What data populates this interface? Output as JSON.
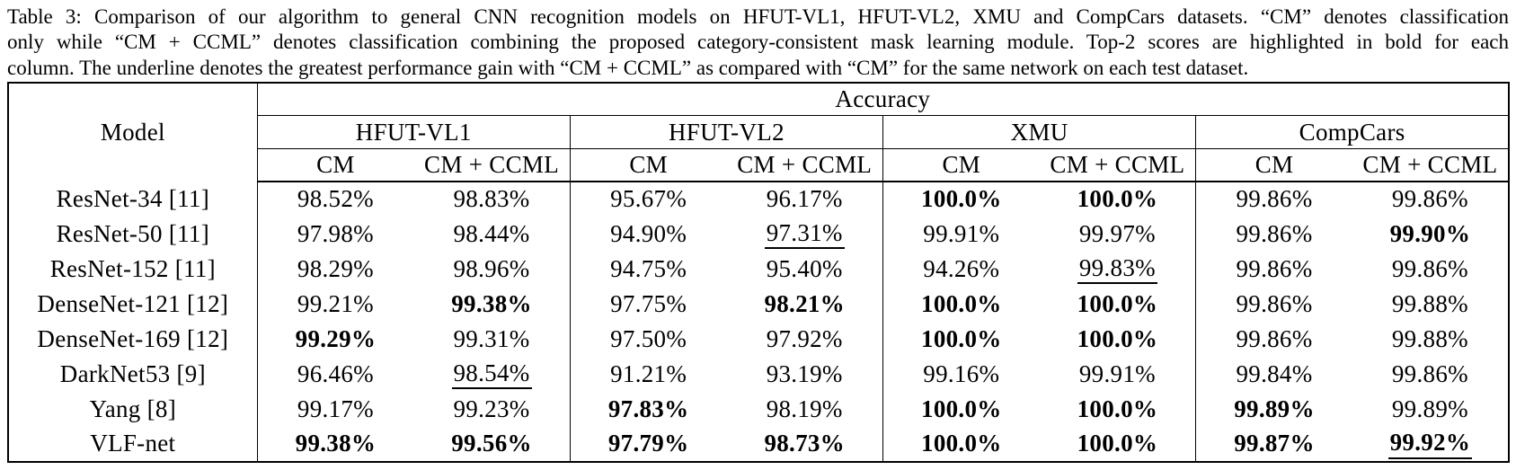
{
  "colors": {
    "background": "#ffffff",
    "text": "#000000",
    "border": "#000000"
  },
  "caption": {
    "lines": [
      "Table 3: Comparison of our algorithm to general CNN recognition models on HFUT-VL1, HFUT-VL2, XMU and CompCars datasets. “CM” denotes classification",
      "only while “CM + CCML” denotes classification combining the proposed category-consistent mask learning module. Top-2 scores are highlighted in bold for each",
      "column. The underline denotes the greatest performance gain with “CM + CCML” as compared with “CM” for the same network on each test dataset."
    ]
  },
  "table": {
    "header": {
      "model_label": "Model",
      "accuracy_label": "Accuracy",
      "datasets": [
        "HFUT-VL1",
        "HFUT-VL2",
        "XMU",
        "CompCars"
      ],
      "sub_columns": [
        "CM",
        "CM + CCML"
      ]
    },
    "rows": [
      {
        "model": "ResNet-34 [11]",
        "values": [
          {
            "text": "98.52%"
          },
          {
            "text": "98.83%"
          },
          {
            "text": "95.67%"
          },
          {
            "text": "96.17%"
          },
          {
            "text": "100.0%",
            "bold": true
          },
          {
            "text": "100.0%",
            "bold": true
          },
          {
            "text": "99.86%"
          },
          {
            "text": "99.86%"
          }
        ]
      },
      {
        "model": "ResNet-50 [11]",
        "values": [
          {
            "text": "97.98%"
          },
          {
            "text": "98.44%"
          },
          {
            "text": "94.90%"
          },
          {
            "text": "97.31%",
            "underline": true
          },
          {
            "text": "99.91%"
          },
          {
            "text": "99.97%"
          },
          {
            "text": "99.86%"
          },
          {
            "text": "99.90%",
            "bold": true
          }
        ]
      },
      {
        "model": "ResNet-152 [11]",
        "values": [
          {
            "text": "98.29%"
          },
          {
            "text": "98.96%"
          },
          {
            "text": "94.75%"
          },
          {
            "text": "95.40%"
          },
          {
            "text": "94.26%"
          },
          {
            "text": "99.83%",
            "underline": true
          },
          {
            "text": "99.86%"
          },
          {
            "text": "99.86%"
          }
        ]
      },
      {
        "model": "DenseNet-121 [12]",
        "values": [
          {
            "text": "99.21%"
          },
          {
            "text": "99.38%",
            "bold": true
          },
          {
            "text": "97.75%"
          },
          {
            "text": "98.21%",
            "bold": true
          },
          {
            "text": "100.0%",
            "bold": true
          },
          {
            "text": "100.0%",
            "bold": true
          },
          {
            "text": "99.86%"
          },
          {
            "text": "99.88%"
          }
        ]
      },
      {
        "model": "DenseNet-169 [12]",
        "values": [
          {
            "text": "99.29%",
            "bold": true
          },
          {
            "text": "99.31%"
          },
          {
            "text": "97.50%"
          },
          {
            "text": "97.92%"
          },
          {
            "text": "100.0%",
            "bold": true
          },
          {
            "text": "100.0%",
            "bold": true
          },
          {
            "text": "99.86%"
          },
          {
            "text": "99.88%"
          }
        ]
      },
      {
        "model": "DarkNet53 [9]",
        "values": [
          {
            "text": "96.46%"
          },
          {
            "text": "98.54%",
            "underline": true
          },
          {
            "text": "91.21%"
          },
          {
            "text": "93.19%"
          },
          {
            "text": "99.16%"
          },
          {
            "text": "99.91%"
          },
          {
            "text": "99.84%"
          },
          {
            "text": "99.86%"
          }
        ]
      },
      {
        "model": "Yang [8]",
        "values": [
          {
            "text": "99.17%"
          },
          {
            "text": "99.23%"
          },
          {
            "text": "97.83%",
            "bold": true
          },
          {
            "text": "98.19%"
          },
          {
            "text": "100.0%",
            "bold": true
          },
          {
            "text": "100.0%",
            "bold": true
          },
          {
            "text": "99.89%",
            "bold": true
          },
          {
            "text": "99.89%"
          }
        ]
      },
      {
        "model": "VLF-net",
        "values": [
          {
            "text": "99.38%",
            "bold": true
          },
          {
            "text": "99.56%",
            "bold": true
          },
          {
            "text": "97.79%",
            "bold": true
          },
          {
            "text": "98.73%",
            "bold": true
          },
          {
            "text": "100.0%",
            "bold": true
          },
          {
            "text": "100.0%",
            "bold": true
          },
          {
            "text": "99.87%",
            "bold": true
          },
          {
            "text": "99.92%",
            "bold": true,
            "underline": true
          }
        ]
      }
    ]
  }
}
